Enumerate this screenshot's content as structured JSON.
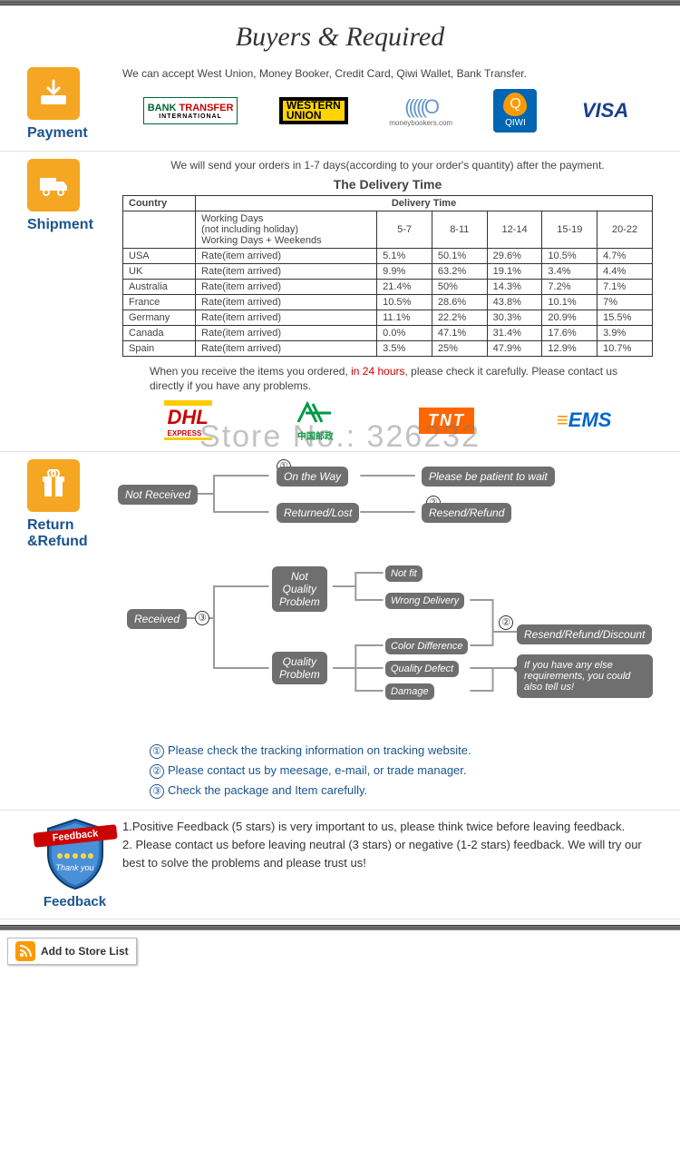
{
  "page_title": "Buyers & Required",
  "watermark": "Store No.: 326232",
  "payment": {
    "label": "Payment",
    "icon_color": "#f5a623",
    "text": "We can accept West Union, Money Booker, Credit Card, Qiwi Wallet, Bank Transfer.",
    "logos": {
      "bank_transfer": {
        "top": "BANK",
        "main": "TRANSFER",
        "sub": "INTERNATIONAL"
      },
      "western_union": "WESTERN\nUNION",
      "moneybookers": {
        "main": "(((((O",
        "sub": "moneybookers.com"
      },
      "qiwi": {
        "letter": "Q",
        "label": "QIWI"
      },
      "visa": "VISA"
    }
  },
  "shipment": {
    "label": "Shipment",
    "icon_color": "#f5a623",
    "intro": "We will send your orders in 1-7 days(according to your order's quantity) after the payment.",
    "table_title": "The Delivery Time",
    "col_country": "Country",
    "col_delivery": "Delivery Time",
    "working_header": "Working Days\n(not including holiday)\nWorking Days + Weekends",
    "buckets": [
      "5-7",
      "8-11",
      "12-14",
      "15-19",
      "20-22"
    ],
    "rate_label": "Rate(item arrived)",
    "rows": [
      {
        "country": "USA",
        "rates": [
          "5.1%",
          "50.1%",
          "29.6%",
          "10.5%",
          "4.7%"
        ]
      },
      {
        "country": "UK",
        "rates": [
          "9.9%",
          "63.2%",
          "19.1%",
          "3.4%",
          "4.4%"
        ]
      },
      {
        "country": "Australia",
        "rates": [
          "21.4%",
          "50%",
          "14.3%",
          "7.2%",
          "7.1%"
        ]
      },
      {
        "country": "France",
        "rates": [
          "10.5%",
          "28.6%",
          "43.8%",
          "10.1%",
          "7%"
        ]
      },
      {
        "country": "Germany",
        "rates": [
          "11.1%",
          "22.2%",
          "30.3%",
          "20.9%",
          "15.5%"
        ]
      },
      {
        "country": "Canada",
        "rates": [
          "0.0%",
          "47.1%",
          "31.4%",
          "17.6%",
          "3.9%"
        ]
      },
      {
        "country": "Spain",
        "rates": [
          "3.5%",
          "25%",
          "47.9%",
          "12.9%",
          "10.7%"
        ]
      }
    ],
    "after_note_pre": "When you receive the items you ordered, ",
    "after_note_red": "in 24 hours",
    "after_note_post": ", please check it carefully. Please contact us directly if you have any problems.",
    "carriers": {
      "dhl": "DHL",
      "dhl_sub": "EXPRESS",
      "chinapost": "中国邮政",
      "tnt": "TNT",
      "ems": "EMS"
    }
  },
  "return": {
    "label": "Return &Refund",
    "icon_color": "#f5a623",
    "node_color": "#6f6f6f",
    "line_color": "#9a9a9a",
    "nodes": {
      "not_received": "Not Received",
      "received": "Received",
      "on_way": "On the Way",
      "returned": "Returned/Lost",
      "patient": "Please be patient to wait",
      "resend1": "Resend/Refund",
      "nqp": "Not\nQuality\nProblem",
      "qp": "Quality\nProblem",
      "not_fit": "Not fit",
      "wrong": "Wrong Delivery",
      "color_diff": "Color Difference",
      "defect": "Quality Defect",
      "damage": "Damage",
      "resend2": "Resend/Refund/Discount",
      "speech": "If you have any else requirements, you could also tell us!"
    },
    "circ_nums": [
      "①",
      "②",
      "③"
    ],
    "notes": [
      "Please check the tracking information on tracking website.",
      "Please contact us by meesage, e-mail, or trade manager.",
      "Check the package and Item carefully."
    ]
  },
  "feedback": {
    "label": "Feedback",
    "badge_text": "Feedback",
    "badge_sub": "Thank you",
    "lines": [
      "1.Positive Feedback (5 stars) is very important to us, please think twice before leaving feedback.",
      "2. Please contact us before leaving neutral (3 stars) or negative (1-2 stars) feedback. We will try our best to solve the problems and please trust us!"
    ]
  },
  "add_store": "Add to Store List"
}
